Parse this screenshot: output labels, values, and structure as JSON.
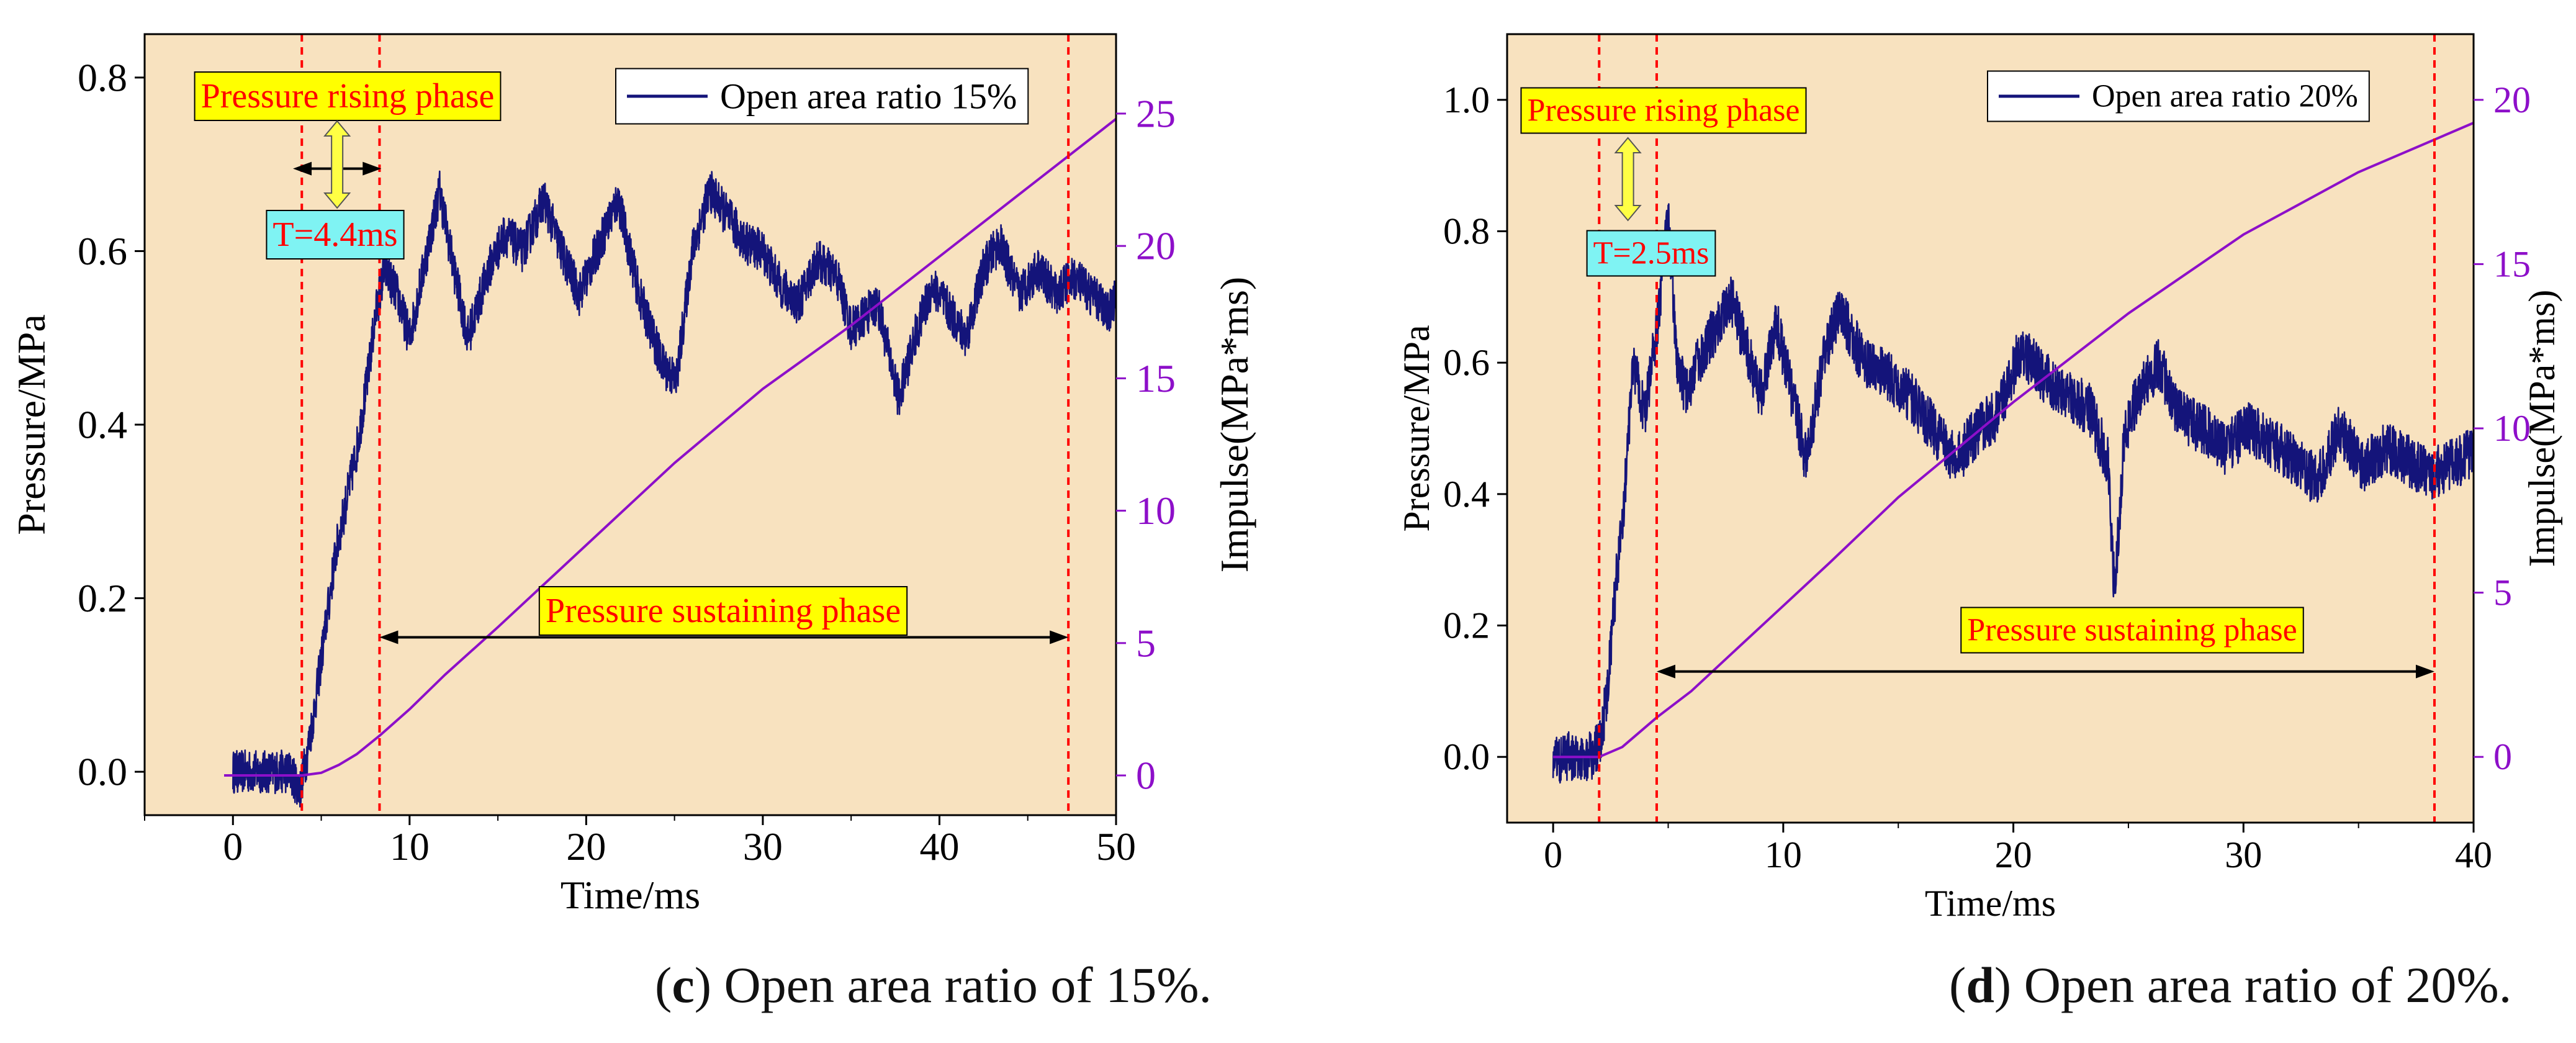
{
  "colors": {
    "background": "#f8e2bf",
    "pressure_line": "#14147a",
    "impulse_line": "#8d0fc9",
    "phase_marker": "#ff0000",
    "phase_label_bg": "#ffff00",
    "period_label_bg": "#7ff3f3",
    "arrow_fill": "#ffff44"
  },
  "chart_data": [
    {
      "type": "line",
      "panel_letter": "c",
      "caption": ") Open area ratio of 15%.",
      "xlabel": "Time/ms",
      "ylabel": "Pressure/MPa",
      "y2label": "Impulse(MPa*ms)",
      "xlim": [
        -5,
        50
      ],
      "ylim": [
        -0.05,
        0.85
      ],
      "y2lim": [
        -1.5,
        28
      ],
      "xticks": [
        "0",
        "10",
        "20",
        "30",
        "40",
        "50"
      ],
      "xtick_values": [
        0,
        10,
        20,
        30,
        40,
        50
      ],
      "yticks": [
        "0.0",
        "0.2",
        "0.4",
        "0.6",
        "0.8"
      ],
      "ytick_values": [
        0,
        0.2,
        0.4,
        0.6,
        0.8
      ],
      "y2ticks": [
        "0",
        "5",
        "10",
        "15",
        "20",
        "25"
      ],
      "y2tick_values": [
        0,
        5,
        10,
        15,
        20,
        25
      ],
      "legend": "Open area ratio 15%",
      "phase_lines_x": [
        3.9,
        8.3,
        47.3
      ],
      "rising_label": "Pressure rising phase",
      "period_label": "T=4.4ms",
      "sustain_label": "Pressure sustaining phase",
      "sustain_arrow_x": [
        8.3,
        47.3
      ],
      "sustain_arrow_y": 0.155,
      "rising_arrow_x": [
        3.4,
        8.4
      ],
      "rising_arrow_y": 0.695,
      "series": [
        {
          "name": "Pressure",
          "axis": "left",
          "noise": 0.05,
          "x": [
            0,
            3.2,
            3.8,
            4.2,
            4.6,
            5.2,
            5.8,
            6.4,
            7.0,
            7.6,
            8.1,
            8.6,
            9.3,
            10.0,
            11.0,
            11.7,
            12.5,
            13.3,
            14.5,
            15.4,
            16.4,
            17.6,
            18.6,
            19.6,
            20.6,
            21.8,
            23.0,
            24.3,
            25.1,
            26.0,
            27.0,
            28.0,
            29.0,
            30.0,
            31.0,
            32.0,
            33.1,
            34.2,
            35.0,
            36.5,
            37.7,
            38.6,
            39.6,
            40.6,
            41.5,
            42.5,
            43.4,
            44.5,
            45.6,
            46.6,
            47.6,
            48.6,
            49.6,
            50.0
          ],
          "y": [
            0,
            0,
            -0.02,
            0.02,
            0.07,
            0.16,
            0.25,
            0.31,
            0.37,
            0.45,
            0.53,
            0.58,
            0.55,
            0.5,
            0.6,
            0.67,
            0.58,
            0.5,
            0.58,
            0.62,
            0.6,
            0.66,
            0.6,
            0.55,
            0.6,
            0.66,
            0.55,
            0.47,
            0.45,
            0.6,
            0.67,
            0.64,
            0.61,
            0.6,
            0.56,
            0.54,
            0.59,
            0.57,
            0.51,
            0.54,
            0.43,
            0.5,
            0.56,
            0.53,
            0.5,
            0.58,
            0.61,
            0.55,
            0.58,
            0.55,
            0.57,
            0.55,
            0.53,
            0.55
          ]
        },
        {
          "name": "Impulse",
          "axis": "right",
          "noise": 0,
          "x": [
            -0.5,
            3.9,
            5.0,
            6.0,
            7.0,
            8.3,
            10,
            12,
            15,
            20,
            25,
            30,
            35,
            40,
            45,
            50
          ],
          "y": [
            0,
            0,
            0.1,
            0.4,
            0.8,
            1.5,
            2.5,
            3.8,
            5.6,
            8.7,
            11.8,
            14.6,
            17.0,
            19.6,
            22.2,
            24.8
          ]
        }
      ]
    },
    {
      "type": "line",
      "panel_letter": "d",
      "caption": ") Open area ratio of 20%.",
      "xlabel": "Time/ms",
      "ylabel": "Pressure/MPa",
      "y2label": "Impulse(MPa*ms)",
      "xlim": [
        -2,
        40
      ],
      "ylim": [
        -0.1,
        1.1
      ],
      "y2lim": [
        -2,
        22
      ],
      "xticks": [
        "0",
        "10",
        "20",
        "30",
        "40"
      ],
      "xtick_values": [
        0,
        10,
        20,
        30,
        40
      ],
      "yticks": [
        "0.0",
        "0.2",
        "0.4",
        "0.6",
        "0.8",
        "1.0"
      ],
      "ytick_values": [
        0,
        0.2,
        0.4,
        0.6,
        0.8,
        1.0
      ],
      "y2ticks": [
        "0",
        "5",
        "10",
        "15",
        "20"
      ],
      "y2tick_values": [
        0,
        5,
        10,
        15,
        20
      ],
      "legend": "Open area ratio 20%",
      "phase_lines_x": [
        2.0,
        4.5,
        38.3
      ],
      "rising_label": "Pressure rising phase",
      "period_label": "T=2.5ms",
      "sustain_label": "Pressure sustaining phase",
      "sustain_arrow_x": [
        4.5,
        38.3
      ],
      "sustain_arrow_y": 0.13,
      "rising_arrow_x": [
        2.0,
        4.5
      ],
      "rising_arrow_y": 0.79,
      "series": [
        {
          "name": "Pressure",
          "axis": "left",
          "noise": 0.08,
          "x": [
            0,
            1.7,
            2.0,
            2.3,
            2.7,
            3.1,
            3.5,
            4.0,
            4.5,
            5.0,
            5.4,
            5.8,
            6.3,
            7.0,
            7.7,
            8.4,
            9.0,
            9.7,
            10.4,
            11.0,
            11.8,
            12.5,
            13.5,
            14.5,
            15.5,
            16.5,
            17.5,
            18.5,
            19.3,
            20.3,
            21.3,
            22.3,
            23.3,
            24.1,
            24.4,
            24.8,
            25.4,
            26.3,
            27.2,
            28.2,
            29.2,
            30.2,
            31.2,
            32.2,
            33.2,
            34.2,
            35.2,
            36.2,
            37.2,
            38.2,
            39.2,
            40.0
          ],
          "y": [
            0,
            0,
            0.02,
            0.08,
            0.25,
            0.4,
            0.6,
            0.52,
            0.65,
            0.82,
            0.6,
            0.55,
            0.6,
            0.65,
            0.7,
            0.62,
            0.55,
            0.66,
            0.55,
            0.45,
            0.62,
            0.68,
            0.6,
            0.58,
            0.55,
            0.5,
            0.45,
            0.5,
            0.52,
            0.62,
            0.58,
            0.55,
            0.53,
            0.45,
            0.25,
            0.48,
            0.55,
            0.6,
            0.52,
            0.5,
            0.47,
            0.5,
            0.48,
            0.45,
            0.42,
            0.5,
            0.44,
            0.47,
            0.45,
            0.43,
            0.45,
            0.46
          ]
        },
        {
          "name": "Impulse",
          "axis": "right",
          "noise": 0,
          "x": [
            0,
            2.0,
            3.0,
            4.5,
            6,
            8,
            10,
            12,
            15,
            20,
            25,
            30,
            35,
            40
          ],
          "y": [
            0,
            0,
            0.3,
            1.2,
            2.0,
            3.3,
            4.6,
            5.9,
            7.9,
            10.8,
            13.5,
            15.9,
            17.8,
            19.3
          ]
        }
      ]
    }
  ]
}
